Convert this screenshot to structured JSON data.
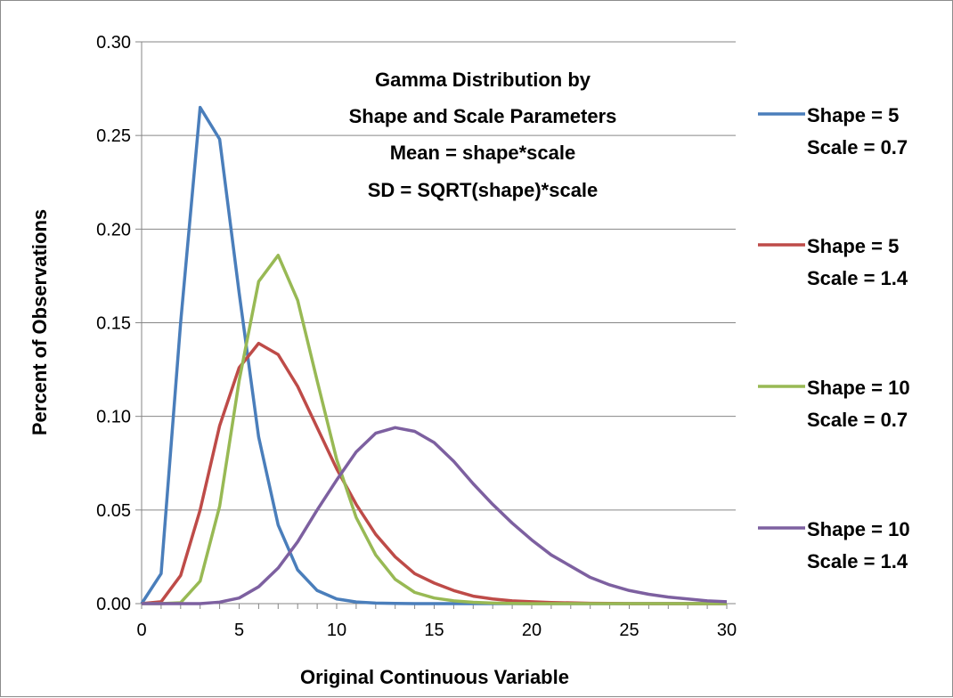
{
  "chart_data": {
    "type": "line",
    "title": "",
    "xlabel": "Original Continuous Variable",
    "ylabel": "Percent of Observations",
    "xlim": [
      0,
      30
    ],
    "ylim": [
      0,
      0.3
    ],
    "x_ticks": [
      "0",
      "5",
      "10",
      "15",
      "20",
      "25",
      "30"
    ],
    "y_ticks": [
      "0.00",
      "0.05",
      "0.10",
      "0.15",
      "0.20",
      "0.25",
      "0.30"
    ],
    "grid": "horizontal",
    "legend_position": "right",
    "annotation": [
      "Gamma Distribution by",
      "Shape and Scale Parameters",
      "Mean = shape*scale",
      "SD = SQRT(shape)*scale"
    ],
    "x": [
      0,
      1,
      2,
      3,
      4,
      5,
      6,
      7,
      8,
      9,
      10,
      11,
      12,
      13,
      14,
      15,
      16,
      17,
      18,
      19,
      20,
      21,
      22,
      23,
      24,
      25,
      26,
      27,
      28,
      29,
      30
    ],
    "series": [
      {
        "name": "Shape = 5",
        "name_line2": "Scale = 0.7",
        "color": "#4a7ebb",
        "values": [
          0,
          0.016,
          0.15,
          0.265,
          0.248,
          0.166,
          0.089,
          0.042,
          0.018,
          0.007,
          0.0025,
          0.0009,
          0.0003,
          0.0001,
          0,
          0,
          0,
          0,
          0,
          0,
          0,
          0,
          0,
          0,
          0,
          0,
          0,
          0,
          0,
          0,
          0
        ]
      },
      {
        "name": "Shape = 5",
        "name_line2": "Scale = 1.4",
        "color": "#be4b48",
        "values": [
          0,
          0.001,
          0.015,
          0.05,
          0.095,
          0.126,
          0.139,
          0.133,
          0.116,
          0.094,
          0.072,
          0.053,
          0.037,
          0.025,
          0.016,
          0.011,
          0.007,
          0.004,
          0.0025,
          0.0015,
          0.001,
          0.0006,
          0.0004,
          0.0002,
          0.0001,
          0,
          0,
          0,
          0,
          0,
          0
        ]
      },
      {
        "name": "Shape = 10",
        "name_line2": "Scale = 0.7",
        "color": "#98b954",
        "values": [
          0,
          0,
          0.0005,
          0.012,
          0.052,
          0.119,
          0.172,
          0.186,
          0.162,
          0.119,
          0.077,
          0.046,
          0.026,
          0.013,
          0.006,
          0.003,
          0.0015,
          0.0007,
          0.0003,
          0.0001,
          0,
          0,
          0,
          0,
          0,
          0,
          0,
          0,
          0,
          0,
          0
        ]
      },
      {
        "name": "Shape = 10",
        "name_line2": "Scale = 1.4",
        "color": "#7d60a0",
        "values": [
          0,
          0,
          0,
          0,
          0.0008,
          0.003,
          0.009,
          0.019,
          0.033,
          0.05,
          0.066,
          0.081,
          0.091,
          0.094,
          0.092,
          0.086,
          0.076,
          0.064,
          0.053,
          0.043,
          0.034,
          0.026,
          0.02,
          0.014,
          0.01,
          0.007,
          0.005,
          0.0035,
          0.0025,
          0.0015,
          0.001
        ]
      }
    ]
  }
}
